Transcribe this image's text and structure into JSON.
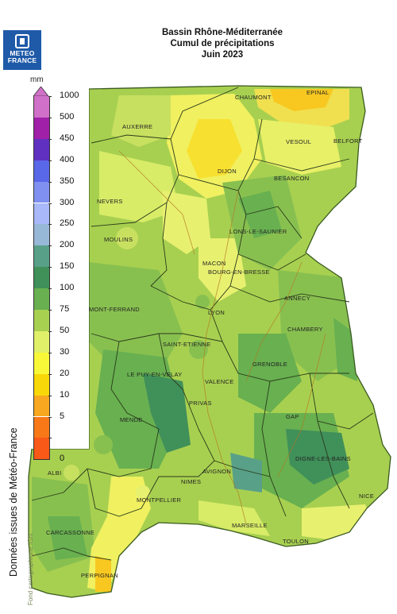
{
  "logo": {
    "line1": "METEO",
    "line2": "FRANCE"
  },
  "title": {
    "line1": "Bassin Rhône-Méditerranée",
    "line2": "Cumul de précipitations",
    "line3": "Juin 2023"
  },
  "legend": {
    "unit": "mm",
    "classes": [
      {
        "label": "1000",
        "color": "#d070c8"
      },
      {
        "label": "500",
        "color": "#a020a8"
      },
      {
        "label": "450",
        "color": "#6030c0"
      },
      {
        "label": "400",
        "color": "#5868e8"
      },
      {
        "label": "350",
        "color": "#8090f0"
      },
      {
        "label": "300",
        "color": "#a8b8f8"
      },
      {
        "label": "250",
        "color": "#98b8d8"
      },
      {
        "label": "200",
        "color": "#58a088"
      },
      {
        "label": "150",
        "color": "#40905a"
      },
      {
        "label": "100",
        "color": "#68b050"
      },
      {
        "label": "75",
        "color": "#a8d050"
      },
      {
        "label": "50",
        "color": "#e0f068"
      },
      {
        "label": "30",
        "color": "#f8f838"
      },
      {
        "label": "20",
        "color": "#f8d808"
      },
      {
        "label": "10",
        "color": "#f8a820"
      },
      {
        "label": "5",
        "color": "#f87818"
      },
      {
        "label": "0",
        "color": "#f85818"
      }
    ]
  },
  "cities": [
    {
      "name": "CHAUMONT"
    },
    {
      "name": "EPINAL"
    },
    {
      "name": "AUXERRE"
    },
    {
      "name": "VESOUL"
    },
    {
      "name": "BELFORT"
    },
    {
      "name": "DIJON"
    },
    {
      "name": "BESANCON"
    },
    {
      "name": "NEVERS"
    },
    {
      "name": "LONS-LE-SAUNIER"
    },
    {
      "name": "MOULINS"
    },
    {
      "name": "MACON"
    },
    {
      "name": "BOURG-EN-BRESSE"
    },
    {
      "name": "ANNECY"
    },
    {
      "name": "MONT-FERRAND"
    },
    {
      "name": "LYON"
    },
    {
      "name": "CHAMBERY"
    },
    {
      "name": "SAINT-ETIENNE"
    },
    {
      "name": "GRENOBLE"
    },
    {
      "name": "LE PUY-EN-VELAY"
    },
    {
      "name": "VALENCE"
    },
    {
      "name": "PRIVAS"
    },
    {
      "name": "GAP"
    },
    {
      "name": "MENDE"
    },
    {
      "name": "DIGNE-LES-BAINS"
    },
    {
      "name": "AVIGNON"
    },
    {
      "name": "NIMES"
    },
    {
      "name": "ALBI"
    },
    {
      "name": "MONTPELLIER"
    },
    {
      "name": "NICE"
    },
    {
      "name": "CARCASSONNE"
    },
    {
      "name": "MARSEILLE"
    },
    {
      "name": "TOULON"
    },
    {
      "name": "PERPIGNAN"
    }
  ],
  "credit": "Données issues de Météo-France",
  "fond": "Fond cartographique IGN"
}
